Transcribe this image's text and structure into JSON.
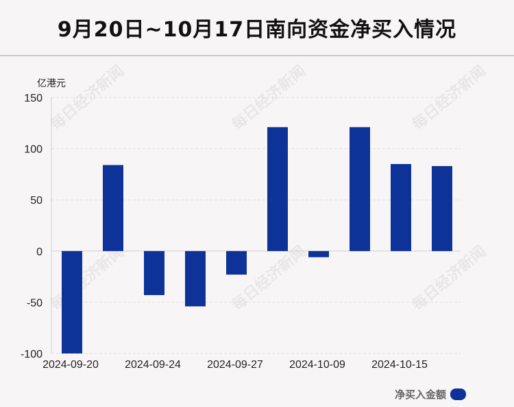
{
  "title": "9月20日~10月17日南向资金净买入情况",
  "watermark": "每日经济新闻",
  "chart_data": {
    "type": "bar",
    "unit_label": "亿港元",
    "yticks": [
      150,
      100,
      50,
      0,
      -50,
      -100
    ],
    "ylim": [
      -100,
      150
    ],
    "xtick_labels": [
      "2024-09-20",
      "2024-09-24",
      "2024-09-27",
      "2024-10-09",
      "2024-10-15"
    ],
    "xtick_indices": [
      0,
      2,
      4,
      6,
      8
    ],
    "series": [
      {
        "name": "净买入金额",
        "color": "#0d3399",
        "values": [
          -100,
          84,
          -43,
          -54,
          -23,
          121,
          -6,
          121,
          85,
          83
        ]
      }
    ],
    "legend_position": "bottom-right",
    "grid": true
  }
}
